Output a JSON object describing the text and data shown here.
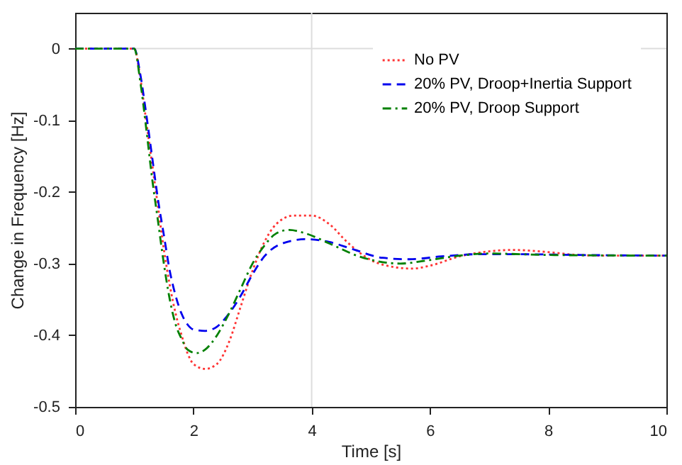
{
  "chart_data": {
    "type": "line",
    "xlabel": "Time [s]",
    "ylabel": "Change in Frequency [Hz]",
    "xlim": [
      0,
      10
    ],
    "xticks": [
      0,
      2,
      4,
      6,
      8,
      10
    ],
    "ylim": [
      -0.5,
      0.05
    ],
    "yticks": [
      -0.5,
      -0.4,
      -0.3,
      -0.2,
      -0.1,
      0
    ],
    "grid": false,
    "legend": "top right",
    "ref_lines": [
      {
        "axis": "x",
        "value": 4,
        "color": "#dddddd"
      },
      {
        "axis": "y",
        "value": 0,
        "color": "#dddddd"
      }
    ],
    "series": [
      {
        "name": "No PV",
        "color": "#ff3333",
        "line_style": "dotted",
        "x": [
          0,
          1,
          1.1,
          1.2,
          1.3,
          1.4,
          1.5,
          1.6,
          1.7,
          1.8,
          1.9,
          2.0,
          2.2,
          2.4,
          2.6,
          2.8,
          3.0,
          3.2,
          3.4,
          3.7,
          4.0,
          4.3,
          4.6,
          5.0,
          5.4,
          5.7,
          6.0,
          6.5,
          7.0,
          7.4,
          8.0,
          8.5,
          9,
          10
        ],
        "values": [
          0,
          0,
          -0.04,
          -0.1,
          -0.16,
          -0.22,
          -0.28,
          -0.33,
          -0.37,
          -0.4,
          -0.425,
          -0.44,
          -0.447,
          -0.44,
          -0.41,
          -0.36,
          -0.31,
          -0.27,
          -0.245,
          -0.233,
          -0.233,
          -0.245,
          -0.27,
          -0.295,
          -0.305,
          -0.307,
          -0.303,
          -0.29,
          -0.283,
          -0.281,
          -0.284,
          -0.288,
          -0.289,
          -0.289
        ]
      },
      {
        "name": "20% PV, Droop+Inertia Support",
        "color": "#0000ee",
        "line_style": "dashed",
        "x": [
          0,
          1,
          1.1,
          1.2,
          1.3,
          1.4,
          1.5,
          1.6,
          1.7,
          1.8,
          1.9,
          2.0,
          2.2,
          2.4,
          2.6,
          2.8,
          3.0,
          3.2,
          3.5,
          3.9,
          4.3,
          4.7,
          5.2,
          5.65,
          6.2,
          6.8,
          7.5,
          8.5,
          10
        ],
        "values": [
          0,
          0,
          -0.035,
          -0.09,
          -0.15,
          -0.21,
          -0.26,
          -0.31,
          -0.345,
          -0.37,
          -0.385,
          -0.392,
          -0.394,
          -0.388,
          -0.37,
          -0.345,
          -0.315,
          -0.29,
          -0.272,
          -0.266,
          -0.27,
          -0.28,
          -0.292,
          -0.294,
          -0.29,
          -0.287,
          -0.287,
          -0.288,
          -0.289
        ]
      },
      {
        "name": "20% PV, Droop Support",
        "color": "#008000",
        "line_style": "dashdot",
        "x": [
          0,
          1,
          1.1,
          1.2,
          1.3,
          1.4,
          1.5,
          1.6,
          1.7,
          1.8,
          1.9,
          2.05,
          2.2,
          2.4,
          2.6,
          2.8,
          3.0,
          3.2,
          3.4,
          3.62,
          3.9,
          4.3,
          4.8,
          5.5,
          6.0,
          6.5,
          7,
          8,
          10
        ],
        "values": [
          0,
          0,
          -0.045,
          -0.11,
          -0.18,
          -0.24,
          -0.3,
          -0.35,
          -0.385,
          -0.405,
          -0.42,
          -0.425,
          -0.42,
          -0.4,
          -0.37,
          -0.335,
          -0.3,
          -0.275,
          -0.258,
          -0.253,
          -0.258,
          -0.272,
          -0.29,
          -0.3,
          -0.295,
          -0.289,
          -0.286,
          -0.288,
          -0.289
        ]
      }
    ]
  }
}
